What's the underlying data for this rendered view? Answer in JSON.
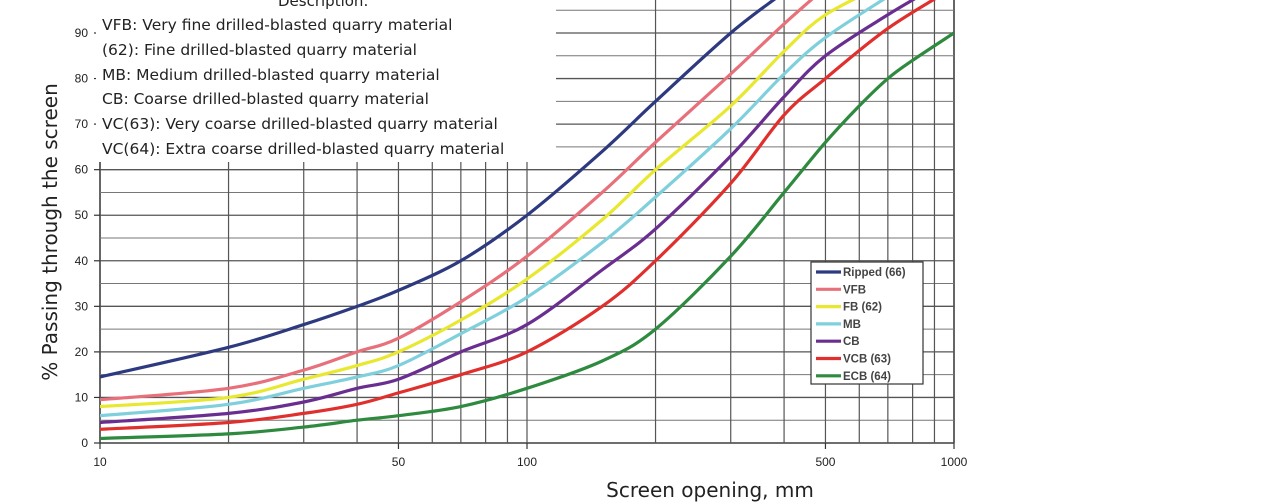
{
  "chart_data": {
    "type": "line",
    "xscale": "log",
    "xlim": [
      10,
      1000
    ],
    "ylim": [
      0,
      100
    ],
    "grid": true,
    "xlabel": "Screen opening, mm",
    "ylabel": "% Passing through the screen",
    "x_ticks": [
      "10",
      "50",
      "100",
      "500",
      "1000"
    ],
    "y_ticks": [
      "0",
      "10",
      "20",
      "30",
      "40",
      "50",
      "60",
      "70",
      "80",
      "90"
    ],
    "legend_placement": "lower-right",
    "description": {
      "title": "Description:",
      "lines": [
        "VFB: Very fine drilled-blasted quarry material",
        "(62): Fine drilled-blasted quarry material",
        "MB: Medium  drilled-blasted quarry material",
        "CB: Coarse drilled-blasted quarry material",
        "VC(63): Very coarse drilled-blasted quarry material",
        "VC(64): Extra coarse drilled-blasted quarry material"
      ]
    },
    "series": [
      {
        "name": "Ripped (66)",
        "color": "#2e3a80",
        "x": [
          10,
          20,
          30,
          40,
          50,
          70,
          100,
          150,
          200,
          300,
          400,
          500
        ],
        "y": [
          14.5,
          21,
          26,
          30,
          33.5,
          40,
          50,
          64,
          75,
          90,
          99,
          106
        ]
      },
      {
        "name": "VFB",
        "color": "#e8707a",
        "x": [
          10,
          20,
          30,
          40,
          50,
          70,
          100,
          150,
          200,
          300,
          400,
          500
        ],
        "y": [
          9.5,
          12,
          16,
          20,
          23,
          31,
          41,
          55,
          66,
          81,
          92,
          100
        ]
      },
      {
        "name": "FB (62)",
        "color": "#e8e830",
        "x": [
          10,
          20,
          30,
          40,
          50,
          70,
          100,
          150,
          200,
          300,
          400,
          500,
          700
        ],
        "y": [
          8,
          10,
          14,
          17,
          20,
          27,
          36,
          49,
          60,
          74,
          86,
          94,
          101
        ]
      },
      {
        "name": "MB",
        "color": "#7fd0dc",
        "x": [
          10,
          20,
          30,
          40,
          50,
          70,
          100,
          150,
          200,
          300,
          400,
          500,
          700
        ],
        "y": [
          6,
          8.5,
          12,
          14.5,
          17,
          24,
          32,
          44,
          54,
          69,
          81,
          89,
          98
        ]
      },
      {
        "name": "CB",
        "color": "#6a2e90",
        "x": [
          10,
          20,
          30,
          40,
          50,
          70,
          100,
          150,
          200,
          300,
          400,
          500,
          700,
          900
        ],
        "y": [
          4.5,
          6.5,
          9,
          12,
          14,
          20,
          26,
          38,
          47,
          63,
          76,
          85,
          94,
          100
        ]
      },
      {
        "name": "VCB (63)",
        "color": "#e0302e",
        "x": [
          10,
          20,
          30,
          40,
          50,
          70,
          100,
          150,
          200,
          300,
          400,
          500,
          700,
          1000
        ],
        "y": [
          3,
          4.5,
          6.5,
          8.5,
          11,
          15,
          20,
          30,
          40,
          57,
          72,
          80,
          91,
          100
        ]
      },
      {
        "name": "ECB (64)",
        "color": "#2e8a3e",
        "x": [
          10,
          20,
          30,
          40,
          50,
          70,
          100,
          150,
          200,
          300,
          400,
          500,
          600,
          700,
          800,
          1000
        ],
        "y": [
          1,
          2,
          3.5,
          5,
          6,
          8,
          12,
          18,
          25,
          41,
          55,
          66,
          74,
          80,
          84,
          90
        ]
      }
    ]
  }
}
